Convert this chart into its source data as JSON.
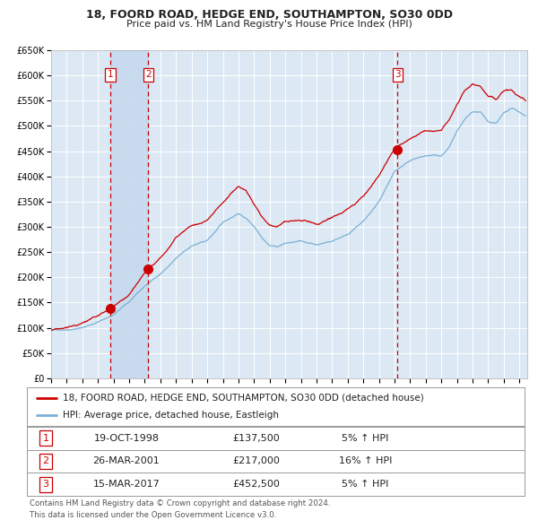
{
  "title": "18, FOORD ROAD, HEDGE END, SOUTHAMPTON, SO30 0DD",
  "subtitle": "Price paid vs. HM Land Registry's House Price Index (HPI)",
  "ylim": [
    0,
    650000
  ],
  "yticks": [
    0,
    50000,
    100000,
    150000,
    200000,
    250000,
    300000,
    350000,
    400000,
    450000,
    500000,
    550000,
    600000,
    650000
  ],
  "ytick_labels": [
    "£0",
    "£50K",
    "£100K",
    "£150K",
    "£200K",
    "£250K",
    "£300K",
    "£350K",
    "£400K",
    "£450K",
    "£500K",
    "£550K",
    "£600K",
    "£650K"
  ],
  "xlim_start": 1995.0,
  "xlim_end": 2025.5,
  "background_color": "#ffffff",
  "plot_bg_color": "#dce9f5",
  "grid_color": "#ffffff",
  "hpi_line_color": "#7bafd4",
  "price_line_color": "#cc0000",
  "sale_marker_color": "#cc0000",
  "sale_vline_color": "#cc0000",
  "shade_color": "#c5d8ed",
  "transactions": [
    {
      "label": "1",
      "date_x": 1998.8,
      "price": 137500,
      "pct": "5%",
      "date_str": "19-OCT-1998",
      "price_str": "£137,500"
    },
    {
      "label": "2",
      "date_x": 2001.23,
      "price": 217000,
      "pct": "16%",
      "date_str": "26-MAR-2001",
      "price_str": "£217,000"
    },
    {
      "label": "3",
      "date_x": 2017.2,
      "price": 452500,
      "pct": "5%",
      "date_str": "15-MAR-2017",
      "price_str": "£452,500"
    }
  ],
  "legend_line1": "18, FOORD ROAD, HEDGE END, SOUTHAMPTON, SO30 0DD (detached house)",
  "legend_line2": "HPI: Average price, detached house, Eastleigh",
  "footnote1": "Contains HM Land Registry data © Crown copyright and database right 2024.",
  "footnote2": "This data is licensed under the Open Government Licence v3.0."
}
